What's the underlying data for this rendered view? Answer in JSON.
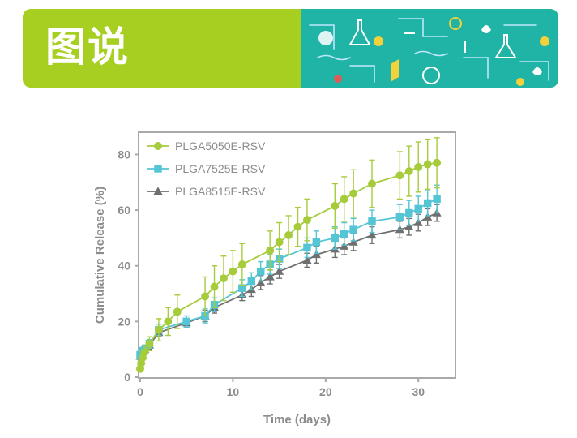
{
  "banner": {
    "title": "图说",
    "colors": {
      "green": "#a6cf21",
      "teal": "#20b4a6"
    }
  },
  "chart_data": {
    "type": "line",
    "xlabel": "Time (days)",
    "ylabel": "Cumulative Release (%)",
    "xlim": [
      0,
      34
    ],
    "ylim": [
      0,
      88
    ],
    "xticks": [
      0,
      10,
      20,
      30
    ],
    "yticks": [
      0,
      20,
      40,
      60,
      80
    ],
    "legend_position": "top-left",
    "grid": false,
    "series": [
      {
        "name": "PLGA5050E-RSV",
        "color": "#a6cc3c",
        "marker": "circle",
        "x": [
          0,
          0.1,
          0.25,
          0.5,
          1,
          2,
          3,
          4,
          7,
          8,
          9,
          10,
          11,
          14,
          15,
          16,
          17,
          18,
          21,
          22,
          23,
          25,
          28,
          29,
          30,
          31,
          32
        ],
        "y": [
          3,
          5,
          7,
          9,
          12,
          17,
          20,
          23.5,
          29,
          32.5,
          35.5,
          38,
          40.5,
          45.5,
          48.5,
          51,
          54,
          56.5,
          61.5,
          64,
          66,
          69.5,
          72.5,
          74,
          75.5,
          76.5,
          77
        ],
        "err": [
          1,
          1.5,
          2,
          2,
          2.5,
          4,
          5,
          6,
          7,
          7.5,
          8,
          7.5,
          7.5,
          7,
          7,
          7,
          7,
          7.5,
          8,
          8,
          8.5,
          8.5,
          8.5,
          9,
          9,
          9,
          9
        ]
      },
      {
        "name": "PLGA7525E-RSV",
        "color": "#54c5d4",
        "marker": "square",
        "x": [
          0,
          0.25,
          0.5,
          1,
          2,
          5,
          7,
          8,
          11,
          12,
          13,
          14,
          15,
          18,
          19,
          21,
          22,
          23,
          25,
          28,
          29,
          30,
          31,
          32
        ],
        "y": [
          8,
          9.5,
          10,
          12,
          17,
          20,
          22,
          26,
          32,
          34.5,
          38,
          40.5,
          42.5,
          46.5,
          48.5,
          50,
          51.5,
          53,
          56,
          57.5,
          59,
          60.5,
          62.5,
          64
        ],
        "err": [
          1,
          1,
          1.5,
          1.5,
          2,
          2,
          2.5,
          2.5,
          3,
          3,
          3.5,
          3.5,
          3.5,
          3.5,
          4,
          4,
          4,
          4,
          4,
          4.5,
          4.5,
          4.5,
          4.5,
          5
        ]
      },
      {
        "name": "PLGA8515E-RSV",
        "color": "#6f6f6f",
        "marker": "triangle",
        "x": [
          0,
          0.25,
          0.5,
          1,
          2,
          5,
          7,
          8,
          11,
          12,
          13,
          14,
          15,
          18,
          19,
          21,
          22,
          23,
          25,
          28,
          29,
          30,
          31,
          32
        ],
        "y": [
          7.5,
          9,
          10,
          11.5,
          16,
          19.5,
          22,
          25,
          29.5,
          31.5,
          34,
          36,
          38,
          42,
          44,
          46,
          47,
          48.5,
          51,
          53,
          54,
          55.5,
          57.5,
          59
        ],
        "err": [
          1,
          1,
          1.5,
          1.5,
          1.5,
          1.5,
          2,
          2,
          2,
          2.5,
          2.5,
          2.5,
          2.5,
          2.5,
          3,
          3,
          3,
          3,
          3,
          3,
          3,
          3,
          3,
          3
        ]
      }
    ]
  }
}
